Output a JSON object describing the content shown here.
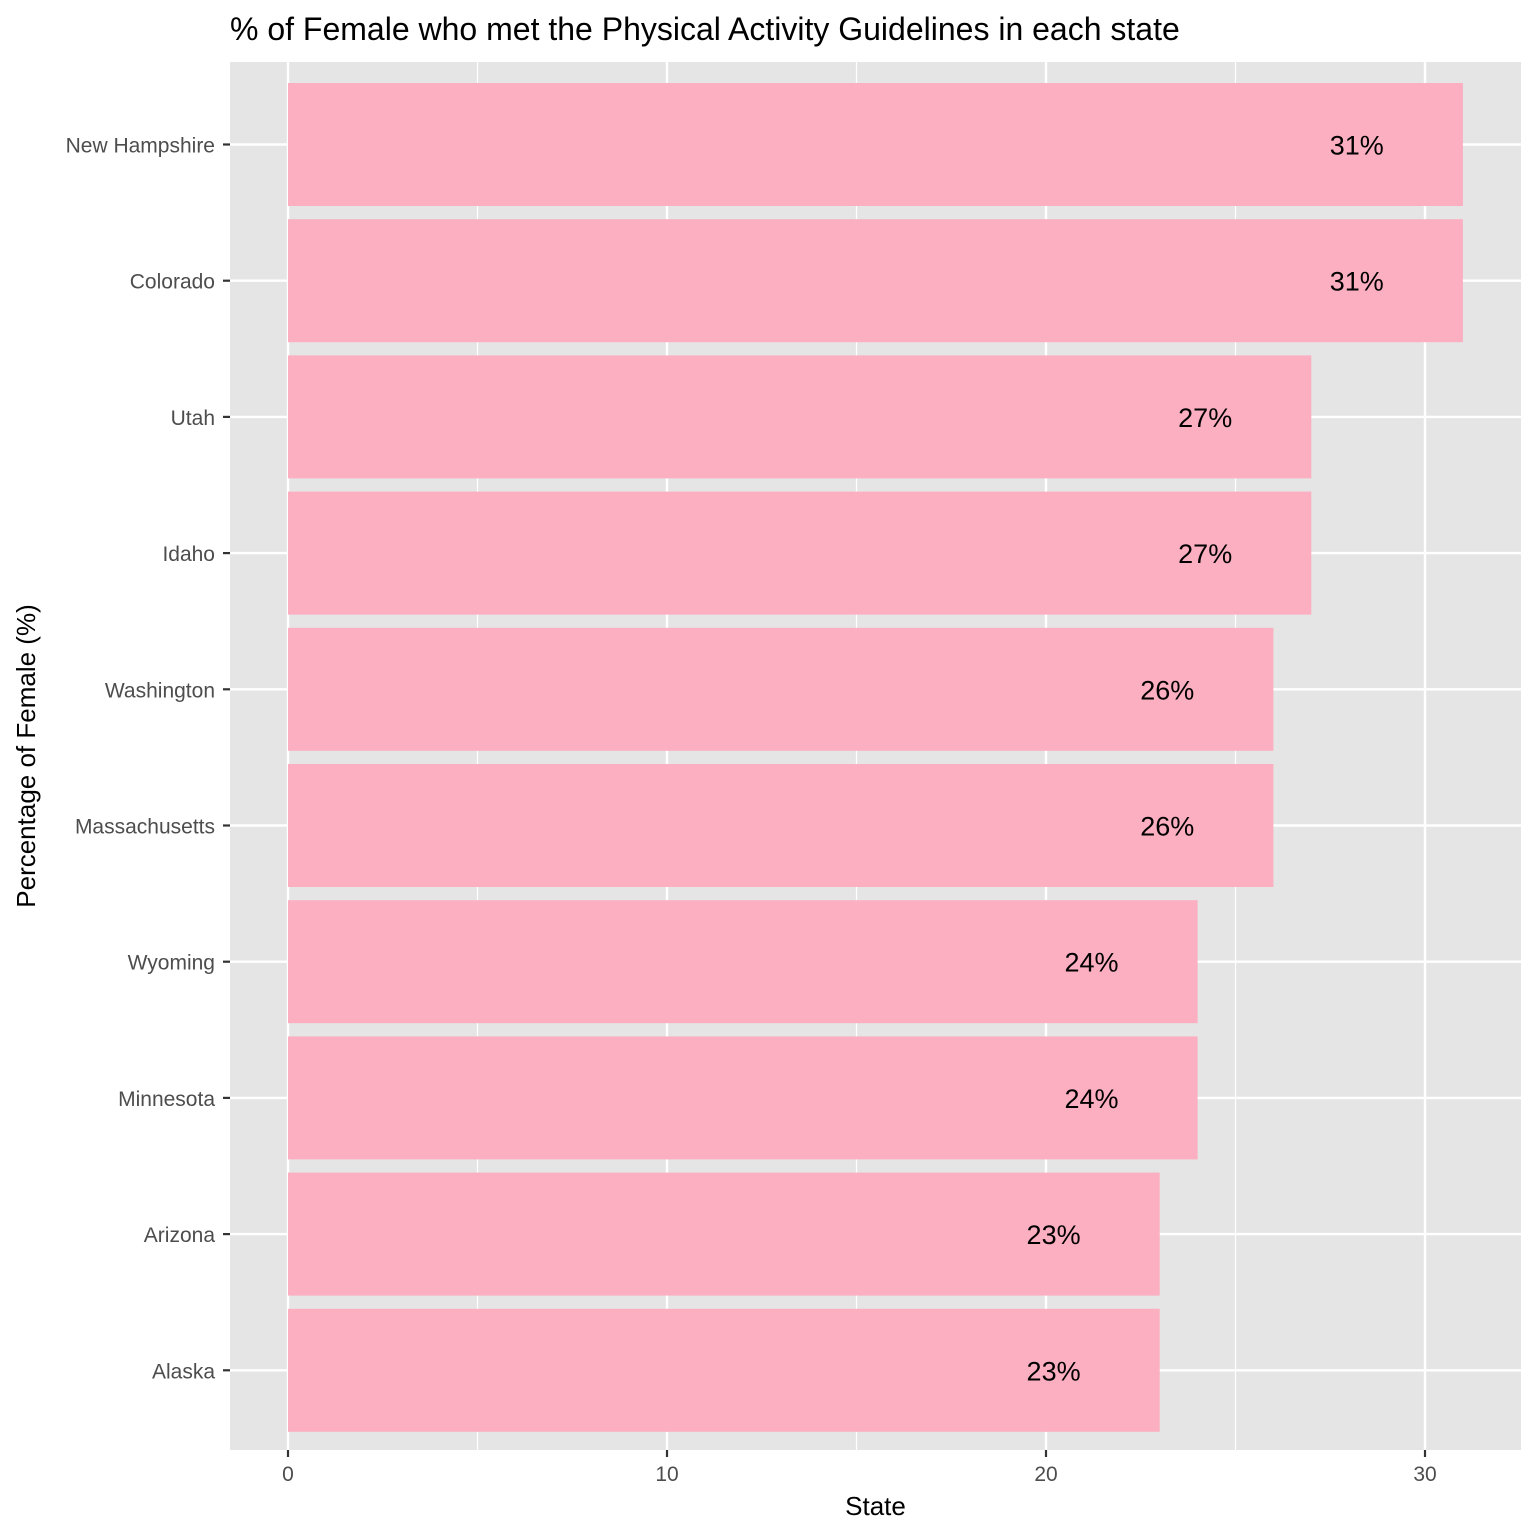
{
  "chart_data": {
    "type": "bar",
    "orientation": "horizontal",
    "title": "% of Female who met the Physical Activity Guidelines in each state",
    "xlabel": "State",
    "ylabel": "Percentage of Female (%)",
    "categories": [
      "New Hampshire",
      "Colorado",
      "Utah",
      "Idaho",
      "Washington",
      "Massachusetts",
      "Wyoming",
      "Minnesota",
      "Arizona",
      "Alaska"
    ],
    "values": [
      31,
      31,
      27,
      27,
      26,
      26,
      24,
      24,
      23,
      23
    ],
    "data_labels": [
      "31%",
      "31%",
      "27%",
      "27%",
      "26%",
      "26%",
      "24%",
      "24%",
      "23%",
      "23%"
    ],
    "xlim": [
      0,
      32.5
    ],
    "x_ticks": [
      0,
      10,
      20,
      30
    ],
    "x_tick_labels": [
      "0",
      "10",
      "20",
      "30"
    ],
    "grid": true,
    "legend": "none",
    "colors": {
      "bar": "#fbafc0",
      "panel": "#e5e5e5",
      "grid": "#ffffff",
      "text": "#000000",
      "tick_text": "#4d4d4d"
    }
  }
}
